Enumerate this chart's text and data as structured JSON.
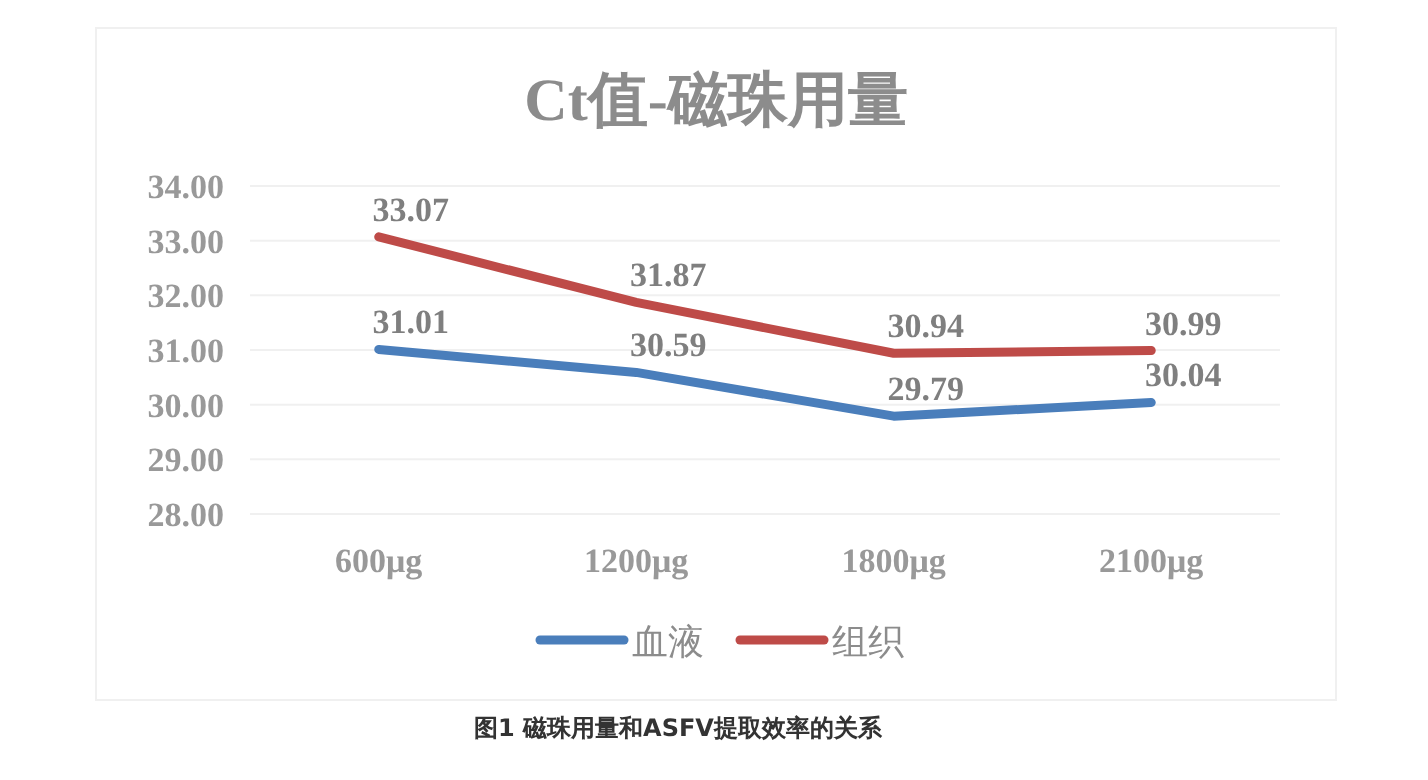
{
  "chart_data": {
    "type": "line",
    "title": "Ct值-磁珠用量",
    "categories": [
      "600μg",
      "1200μg",
      "1800μg",
      "2100μg"
    ],
    "series": [
      {
        "name": "血液",
        "color": "#4a7ebb",
        "values": [
          31.01,
          30.59,
          29.79,
          30.04
        ]
      },
      {
        "name": "组织",
        "color": "#be4b48",
        "values": [
          33.07,
          31.87,
          30.94,
          30.99
        ]
      }
    ],
    "ylim": [
      28,
      34
    ],
    "yticks": [
      {
        "value": 28,
        "label": "28.00"
      },
      {
        "value": 29,
        "label": "29.00"
      },
      {
        "value": 30,
        "label": "30.00"
      },
      {
        "value": 31,
        "label": "31.00"
      },
      {
        "value": 32,
        "label": "32.00"
      },
      {
        "value": 33,
        "label": "33.00"
      },
      {
        "value": 34,
        "label": "34.00"
      }
    ],
    "grid": "y",
    "legend": "bottom",
    "marker": "none",
    "line_style": "solid",
    "data_labels": true,
    "annotations": [
      "图1 磁珠用量和ASFV提取效率的关系"
    ]
  }
}
